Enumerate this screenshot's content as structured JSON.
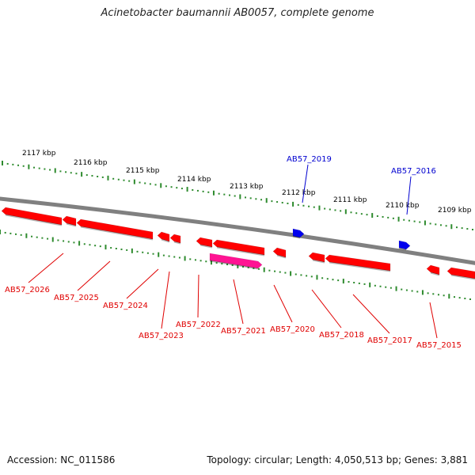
{
  "title": "Acinetobacter baumannii AB0057, complete genome",
  "footer": {
    "accession": "Accession: NC_011586",
    "summary": "Topology: circular; Length: 4,050,513 bp; Genes: 3,881"
  },
  "colors": {
    "backbone": "#808080",
    "tick": "#2e8b2e",
    "gene_forward": "#0000ee",
    "gene_reverse": "#ff0000",
    "gene_highlight": "#ff1493",
    "label_forward": "#0000d0",
    "label_reverse": "#e00000"
  },
  "scale_labels": [
    "2117 kbp",
    "2116 kbp",
    "2115 kbp",
    "2114 kbp",
    "2113 kbp",
    "2112 kbp",
    "2111 kbp",
    "2110 kbp",
    "2109 kbp"
  ],
  "genes_forward": [
    {
      "label": "AB57_2019"
    },
    {
      "label": "AB57_2016"
    }
  ],
  "genes_reverse": [
    {
      "label": "AB57_2026"
    },
    {
      "label": "AB57_2025"
    },
    {
      "label": "AB57_2024"
    },
    {
      "label": "AB57_2023"
    },
    {
      "label": "AB57_2022"
    },
    {
      "label": "AB57_2021"
    },
    {
      "label": "AB57_2020"
    },
    {
      "label": "AB57_2018"
    },
    {
      "label": "AB57_2017"
    },
    {
      "label": "AB57_2015"
    }
  ]
}
